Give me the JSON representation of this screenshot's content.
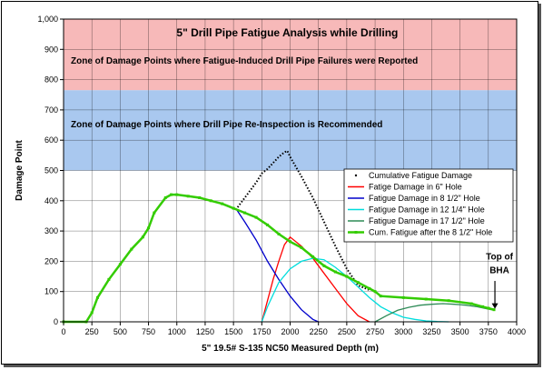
{
  "chart_data": {
    "type": "line",
    "title": "5\" Drill Pipe Fatigue Analysis while Drilling",
    "xlabel": "5\" 19.5# S-135 NC50 Measured Depth (m)",
    "ylabel": "Damage Point",
    "xlim": [
      0,
      4000
    ],
    "ylim": [
      0,
      1000
    ],
    "x_ticks": [
      "0",
      "250",
      "500",
      "750",
      "1000",
      "1250",
      "1500",
      "1750",
      "2000",
      "2250",
      "2500",
      "2750",
      "3000",
      "3250",
      "3500",
      "3750",
      "4000"
    ],
    "y_ticks": [
      "0",
      "100",
      "200",
      "300",
      "400",
      "500",
      "600",
      "700",
      "800",
      "900",
      "1,000"
    ],
    "grid": true,
    "legend_position": "right",
    "zones": [
      {
        "label": "Zone of Damage Points where Fatigue-Induced Drill Pipe Failures were Reported",
        "y_range": [
          765,
          1000
        ],
        "color": "#f7b9b9"
      },
      {
        "label": "Zone of Damage Points where Drill Pipe Re-Inspection is Recommended",
        "y_range": [
          500,
          765
        ],
        "color": "#a9c8ef"
      }
    ],
    "annotation": {
      "text_line1": "Top of",
      "text_line2": "BHA",
      "x": 3800,
      "y": 40
    },
    "series": [
      {
        "name": "Cumulative Fatigue Damage",
        "color": "#000000",
        "style": "dotted",
        "x": [
          1520,
          1600,
          1700,
          1750,
          1800,
          1850,
          1900,
          1950,
          1975,
          2000,
          2100,
          2200,
          2300,
          2400,
          2500,
          2600,
          2700
        ],
        "y": [
          370,
          410,
          460,
          490,
          505,
          525,
          545,
          560,
          565,
          545,
          480,
          410,
          330,
          250,
          175,
          120,
          105
        ]
      },
      {
        "name": "Fatige Damage in 6\" Hole",
        "color": "#ff0000",
        "style": "solid",
        "x": [
          1750,
          1800,
          1850,
          1900,
          1950,
          2000,
          2100,
          2200,
          2300,
          2400,
          2500,
          2600,
          2700
        ],
        "y": [
          0,
          70,
          140,
          200,
          255,
          280,
          250,
          210,
          160,
          110,
          60,
          20,
          0
        ]
      },
      {
        "name": "Fatigue Damage in 8 1/2\" Hole",
        "color": "#0000cc",
        "style": "solid",
        "x": [
          1520,
          1600,
          1700,
          1800,
          1900,
          2000,
          2100,
          2200,
          2250
        ],
        "y": [
          375,
          330,
          270,
          200,
          140,
          85,
          40,
          8,
          0
        ]
      },
      {
        "name": "Fatigue Damage in 12 1/4\" Hole",
        "color": "#00dddd",
        "style": "solid",
        "x": [
          1750,
          1800,
          1900,
          2000,
          2100,
          2200,
          2300,
          2400,
          2500,
          2600,
          2700,
          2800,
          2900,
          3000,
          3100,
          3200,
          3300,
          3400
        ],
        "y": [
          0,
          50,
          130,
          175,
          200,
          210,
          205,
          180,
          150,
          115,
          80,
          50,
          30,
          15,
          8,
          3,
          1,
          0
        ]
      },
      {
        "name": "Fatigue Damage in 17 1/2\" Hole",
        "color": "#2e8b57",
        "style": "solid",
        "x": [
          2750,
          2850,
          2950,
          3050,
          3150,
          3250,
          3350,
          3450,
          3550,
          3650,
          3750,
          3800
        ],
        "y": [
          0,
          20,
          38,
          48,
          55,
          58,
          60,
          58,
          55,
          50,
          42,
          38
        ]
      },
      {
        "name": "Cum. Fatigue after the 8 1/2\" Hole",
        "color": "#33cc00",
        "style": "solid-marker",
        "x": [
          0,
          200,
          250,
          300,
          400,
          500,
          600,
          700,
          750,
          800,
          900,
          950,
          1000,
          1100,
          1200,
          1300,
          1400,
          1500,
          1600,
          1700,
          1800,
          1900,
          2000,
          2100,
          2200,
          2300,
          2400,
          2500,
          2600,
          2700,
          2750,
          2800,
          3000,
          3200,
          3400,
          3600,
          3700,
          3750,
          3800
        ],
        "y": [
          0,
          0,
          30,
          80,
          140,
          190,
          240,
          280,
          310,
          360,
          410,
          420,
          420,
          415,
          410,
          400,
          390,
          375,
          360,
          345,
          320,
          290,
          265,
          245,
          215,
          185,
          165,
          150,
          130,
          110,
          100,
          85,
          80,
          75,
          70,
          60,
          50,
          45,
          40
        ]
      }
    ]
  }
}
